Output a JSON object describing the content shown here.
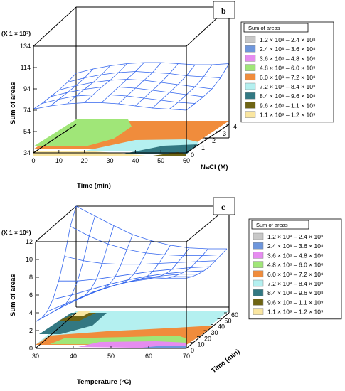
{
  "chart_data": [
    {
      "type": "surface",
      "panel_label": "b",
      "multiplier": "(X 1 × 10⁷)",
      "zlabel": "Sum of areas",
      "xlabel": "Time (min)",
      "ylabel": "NaCl (M)",
      "z_ticks": [
        "34",
        "54",
        "74",
        "94",
        "114",
        "134"
      ],
      "x_ticks": [
        "0",
        "10",
        "20",
        "30",
        "40",
        "50",
        "60"
      ],
      "y_ticks": [
        "0",
        "1",
        "2",
        "3",
        "4"
      ],
      "zlim": [
        34,
        134
      ],
      "xlim": [
        0,
        60
      ],
      "ylim": [
        0,
        4
      ],
      "surface_z_grid": [
        [
          75,
          78,
          80,
          81,
          81,
          80,
          78,
          76,
          75,
          74
        ],
        [
          75,
          79,
          82,
          83,
          83,
          82,
          80,
          78,
          76,
          75
        ],
        [
          76,
          80,
          83,
          85,
          85,
          84,
          82,
          80,
          78,
          76
        ],
        [
          77,
          81,
          84,
          86,
          87,
          86,
          84,
          82,
          80,
          78
        ],
        [
          79,
          83,
          86,
          88,
          89,
          88,
          87,
          85,
          84,
          83
        ],
        [
          82,
          86,
          89,
          91,
          92,
          92,
          91,
          90,
          90,
          91
        ]
      ],
      "legend": {
        "title": "Sum of areas",
        "entries": [
          {
            "label": "1.2 × 10⁸ – 2.4 × 10⁸",
            "color": "#c8c8c8"
          },
          {
            "label": "2.4 × 10⁸ – 3.6 × 10⁸",
            "color": "#6e96dc"
          },
          {
            "label": "3.6 × 10⁸ – 4.8 × 10⁸",
            "color": "#e68cf0"
          },
          {
            "label": "4.8 × 10⁸ – 6.0 × 10⁸",
            "color": "#a0e678"
          },
          {
            "label": "6.0 × 10⁸ – 7.2 × 10⁸",
            "color": "#f08c3c"
          },
          {
            "label": "7.2 × 10⁸ – 8.4 × 10⁸",
            "color": "#b4f0f0"
          },
          {
            "label": "8.4 × 10⁸ – 9.6 × 10⁸",
            "color": "#327882"
          },
          {
            "label": "9.6 × 10⁸ – 1.1 × 10⁹",
            "color": "#6e6414"
          },
          {
            "label": "1.1 × 10⁹ – 1.2 × 10⁹",
            "color": "#fae6a0"
          }
        ]
      }
    },
    {
      "type": "surface",
      "panel_label": "c",
      "multiplier": "(X 1 × 10⁸)",
      "zlabel": "Sum of areas",
      "xlabel": "Temperature (°C)",
      "ylabel": "Time (min)",
      "z_ticks": [
        "0",
        "2",
        "4",
        "6",
        "8",
        "10",
        "12"
      ],
      "x_ticks": [
        "30",
        "40",
        "50",
        "60",
        "70"
      ],
      "y_ticks": [
        "0",
        "10",
        "20",
        "30",
        "40",
        "50",
        "60"
      ],
      "zlim": [
        0,
        12
      ],
      "xlim": [
        30,
        70
      ],
      "ylim": [
        0,
        60
      ],
      "surface_z_grid": [
        [
          3.0,
          4.2,
          5.3,
          6.3,
          7.0,
          7.5,
          7.8,
          7.9,
          7.9
        ],
        [
          2.8,
          4.0,
          5.0,
          5.9,
          6.6,
          7.1,
          7.4,
          7.5,
          7.5
        ],
        [
          3.0,
          3.9,
          4.8,
          5.6,
          6.2,
          6.7,
          7.0,
          7.2,
          7.2
        ],
        [
          3.8,
          4.3,
          4.9,
          5.5,
          6.0,
          6.4,
          6.7,
          6.9,
          7.0
        ],
        [
          5.3,
          5.3,
          5.5,
          5.8,
          6.1,
          6.4,
          6.6,
          6.8,
          6.9
        ],
        [
          7.5,
          7.0,
          6.7,
          6.6,
          6.6,
          6.7,
          6.8,
          6.9,
          7.0
        ],
        [
          10.3,
          9.2,
          8.3,
          7.7,
          7.3,
          7.1,
          7.0,
          7.0,
          7.1
        ],
        [
          12.0,
          10.9,
          9.8,
          8.8,
          8.1,
          7.6,
          7.3,
          7.2,
          7.2
        ]
      ],
      "legend": {
        "title": "Sum of areas",
        "entries": [
          {
            "label": "1.2 × 10⁸ – 2.4 × 10⁸",
            "color": "#c8c8c8"
          },
          {
            "label": "2.4 × 10⁸ – 3.6 × 10⁸",
            "color": "#6e96dc"
          },
          {
            "label": "3.6 × 10⁸ – 4.8 × 10⁸",
            "color": "#e68cf0"
          },
          {
            "label": "4.8 × 10⁸ – 6.0 × 10⁸",
            "color": "#a0e678"
          },
          {
            "label": "6.0 × 10⁸ – 7.2 × 10⁸",
            "color": "#f08c3c"
          },
          {
            "label": "7.2 × 10⁸ – 8.4 × 10⁸",
            "color": "#b4f0f0"
          },
          {
            "label": "8.4 × 10⁸ – 9.6 × 10⁸",
            "color": "#327882"
          },
          {
            "label": "9.6 × 10⁸ – 1.1 × 10⁹",
            "color": "#6e6414"
          },
          {
            "label": "1.1 × 10⁹ – 1.2 × 10⁹",
            "color": "#fae6a0"
          }
        ]
      }
    }
  ],
  "style": {
    "mesh_color": "#3366ee",
    "box_color": "#000000"
  }
}
